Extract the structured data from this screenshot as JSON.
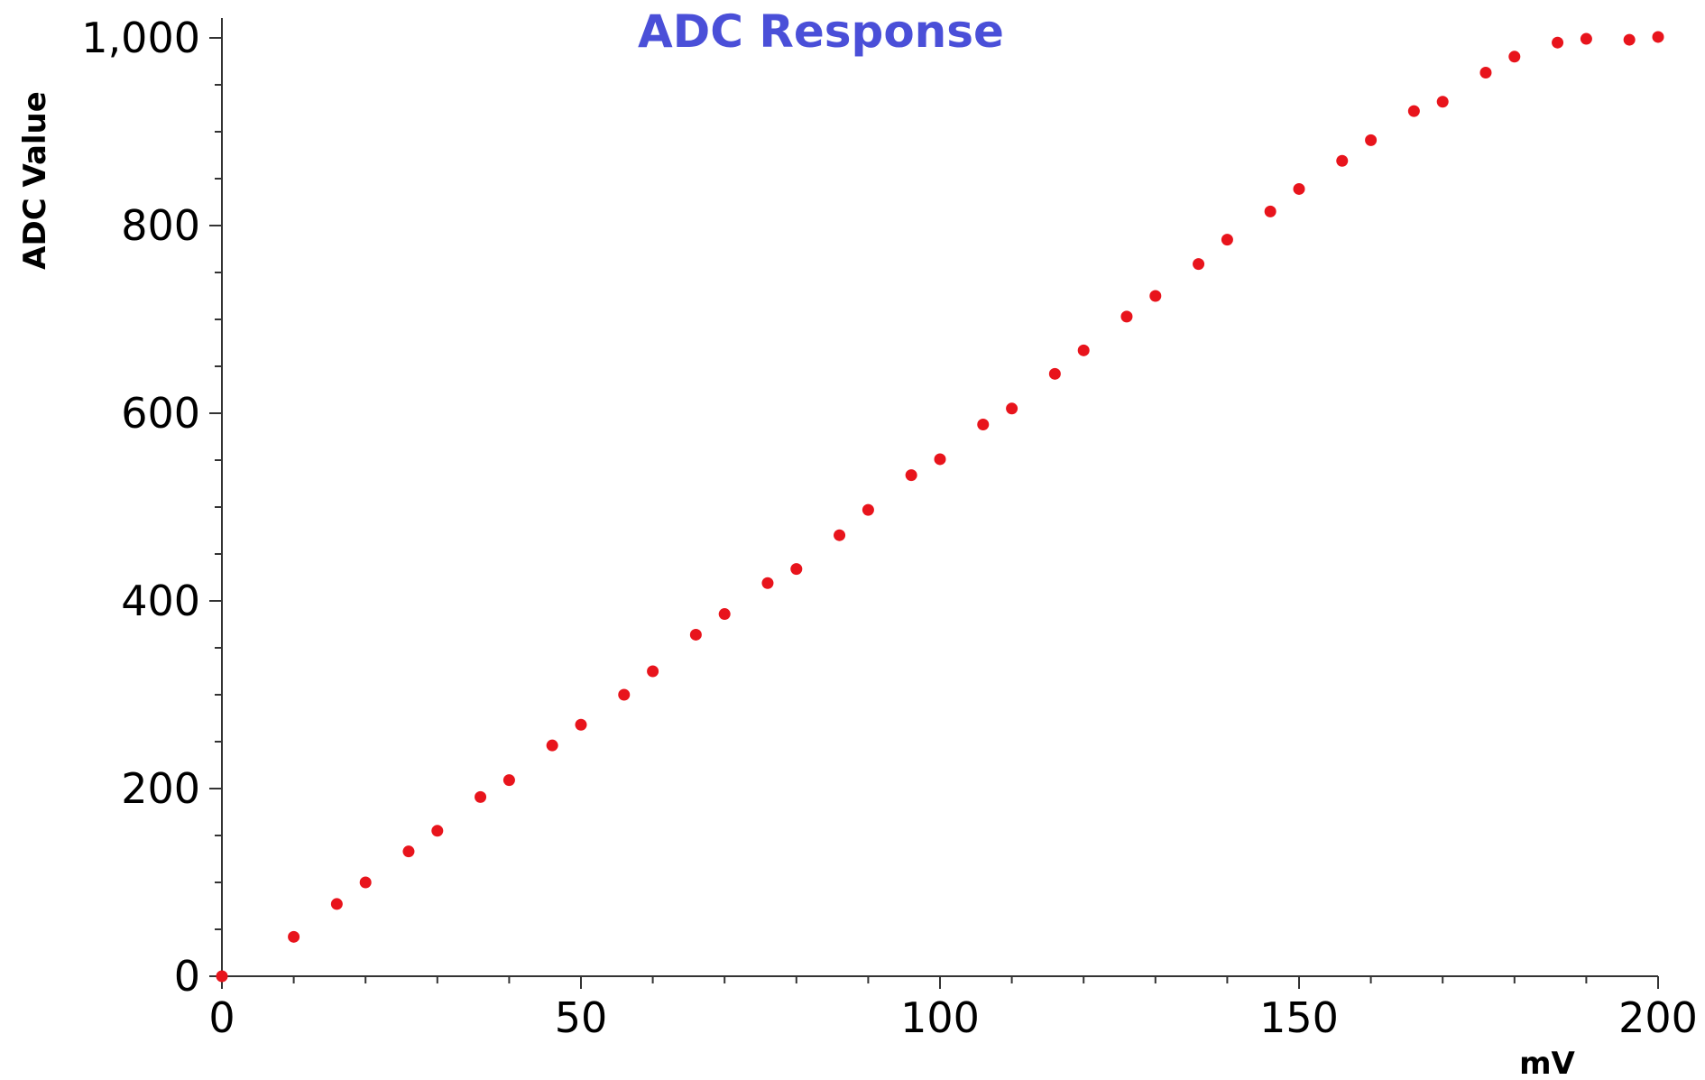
{
  "chart_data": {
    "type": "scatter",
    "title": "ADC Response",
    "xlabel": "mV",
    "ylabel": "ADC Value",
    "xlim": [
      0,
      200
    ],
    "ylim": [
      0,
      1000
    ],
    "x_ticks": [
      {
        "value": 0,
        "label": "0"
      },
      {
        "value": 50,
        "label": "50"
      },
      {
        "value": 100,
        "label": "100"
      },
      {
        "value": 150,
        "label": "150"
      },
      {
        "value": 200,
        "label": "200"
      }
    ],
    "y_ticks": [
      {
        "value": 0,
        "label": "0"
      },
      {
        "value": 200,
        "label": "200"
      },
      {
        "value": 400,
        "label": "400"
      },
      {
        "value": 600,
        "label": "600"
      },
      {
        "value": 800,
        "label": "800"
      },
      {
        "value": 1000,
        "label": "1,000"
      }
    ],
    "grid": false,
    "legend": "none",
    "colors": {
      "points": "#e8141c",
      "title": "#4a4fd8",
      "axis": "#333333"
    },
    "series": [
      {
        "x": [
          0,
          10,
          16,
          20,
          26,
          30,
          36,
          40,
          46,
          50,
          56,
          60,
          66,
          70,
          76,
          80,
          86,
          90,
          96,
          100,
          106,
          110,
          116,
          120,
          126,
          130,
          136,
          140,
          146,
          150,
          156,
          160,
          166,
          170,
          176,
          180,
          186,
          190,
          196,
          200
        ],
        "y": [
          0,
          42,
          77,
          100,
          133,
          155,
          191,
          209,
          246,
          268,
          300,
          325,
          364,
          386,
          419,
          434,
          470,
          497,
          534,
          551,
          588,
          605,
          642,
          667,
          703,
          725,
          759,
          785,
          815,
          839,
          869,
          891,
          922,
          932,
          963,
          980,
          995,
          999,
          998,
          1001
        ]
      }
    ]
  }
}
